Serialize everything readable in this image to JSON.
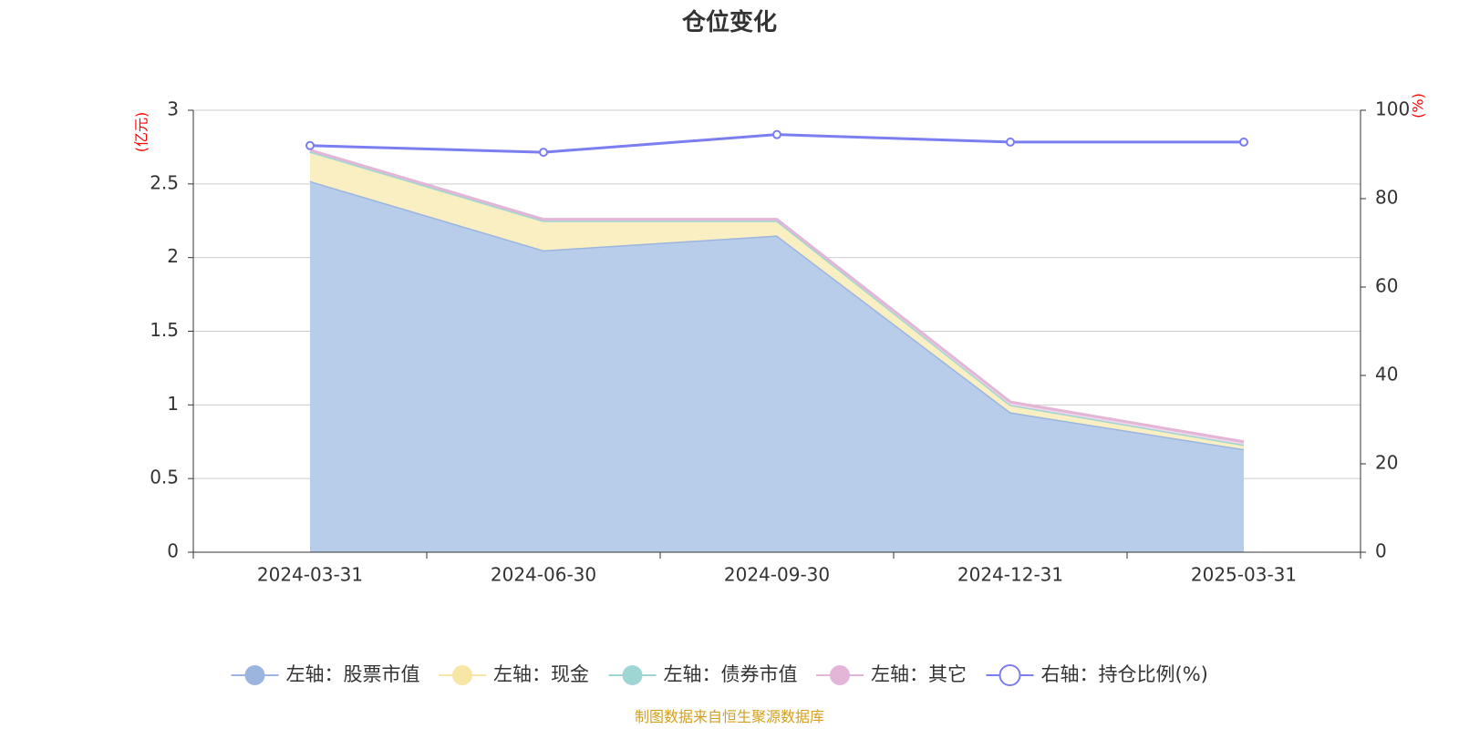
{
  "chart_data": {
    "type": "area",
    "title": "仓位变化",
    "categories": [
      "2024-03-31",
      "2024-06-30",
      "2024-09-30",
      "2024-12-31",
      "2025-03-31"
    ],
    "left_axis": {
      "unit": "(亿元)",
      "min": 0,
      "max": 3,
      "ticks": [
        "0",
        "0.5",
        "1",
        "1.5",
        "2",
        "2.5",
        "3"
      ]
    },
    "right_axis": {
      "unit": "(%)",
      "min": 0,
      "max": 100,
      "ticks": [
        "0",
        "20",
        "40",
        "60",
        "80",
        "100"
      ]
    },
    "series": [
      {
        "name": "左轴：股票市值",
        "axis": "left",
        "stack": true,
        "values": [
          2.52,
          2.05,
          2.15,
          0.95,
          0.7
        ],
        "line_color": "#9bb5df",
        "fill_color": "#b8cdea"
      },
      {
        "name": "左轴：现金",
        "axis": "left",
        "stack": true,
        "values": [
          0.2,
          0.2,
          0.1,
          0.05,
          0.03
        ],
        "line_color": "#f7e6a6",
        "fill_color": "#faefc3"
      },
      {
        "name": "左轴：债券市值",
        "axis": "left",
        "stack": true,
        "values": [
          0,
          0,
          0,
          0,
          0
        ],
        "line_color": "#9ed6d3",
        "fill_color": "#c4e8e6"
      },
      {
        "name": "左轴：其它",
        "axis": "left",
        "stack": true,
        "values": [
          0.01,
          0.01,
          0.01,
          0.02,
          0.02
        ],
        "line_color": "#e3b5d7",
        "fill_color": "#f0d6ea"
      },
      {
        "name": "右轴：持仓比例(%)",
        "axis": "right",
        "stack": false,
        "values": [
          92,
          90.5,
          94.5,
          92.8,
          92.8
        ],
        "line_color": "#7b7ef0"
      }
    ],
    "legend_position": "bottom",
    "grid": true
  },
  "source": {
    "text": "制图数据来自恒生聚源数据库",
    "color": "#d4a020"
  },
  "colors": {
    "unit": "#ff0000",
    "axis": "#333333",
    "grid": "#cccccc"
  }
}
